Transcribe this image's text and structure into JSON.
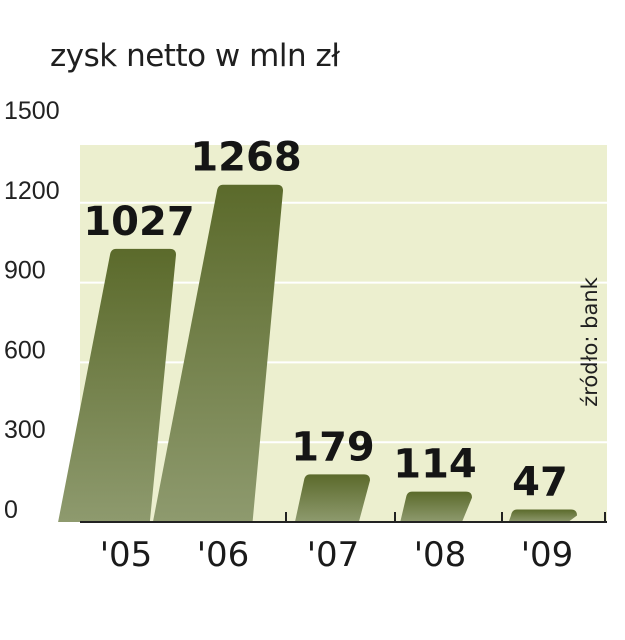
{
  "chart_data": {
    "type": "bar",
    "title": "zysk netto w mln zł",
    "source": "źródło: bank",
    "categories": [
      "'05",
      "'06",
      "'07",
      "'08",
      "'09"
    ],
    "values": [
      1027,
      1268,
      179,
      114,
      47
    ],
    "data_labels": [
      "1027",
      "1268",
      "179",
      "114",
      "47"
    ],
    "y_ticks": [
      0,
      300,
      600,
      900,
      1200,
      1500
    ],
    "ylim": [
      0,
      1500
    ],
    "grid": true,
    "colors": {
      "plot_background": "#ecefcf",
      "bar_top": "#5b6a2b",
      "bar_bottom": "#8e9a6e",
      "gridline": "#ffffff",
      "axis": "#222222"
    }
  }
}
